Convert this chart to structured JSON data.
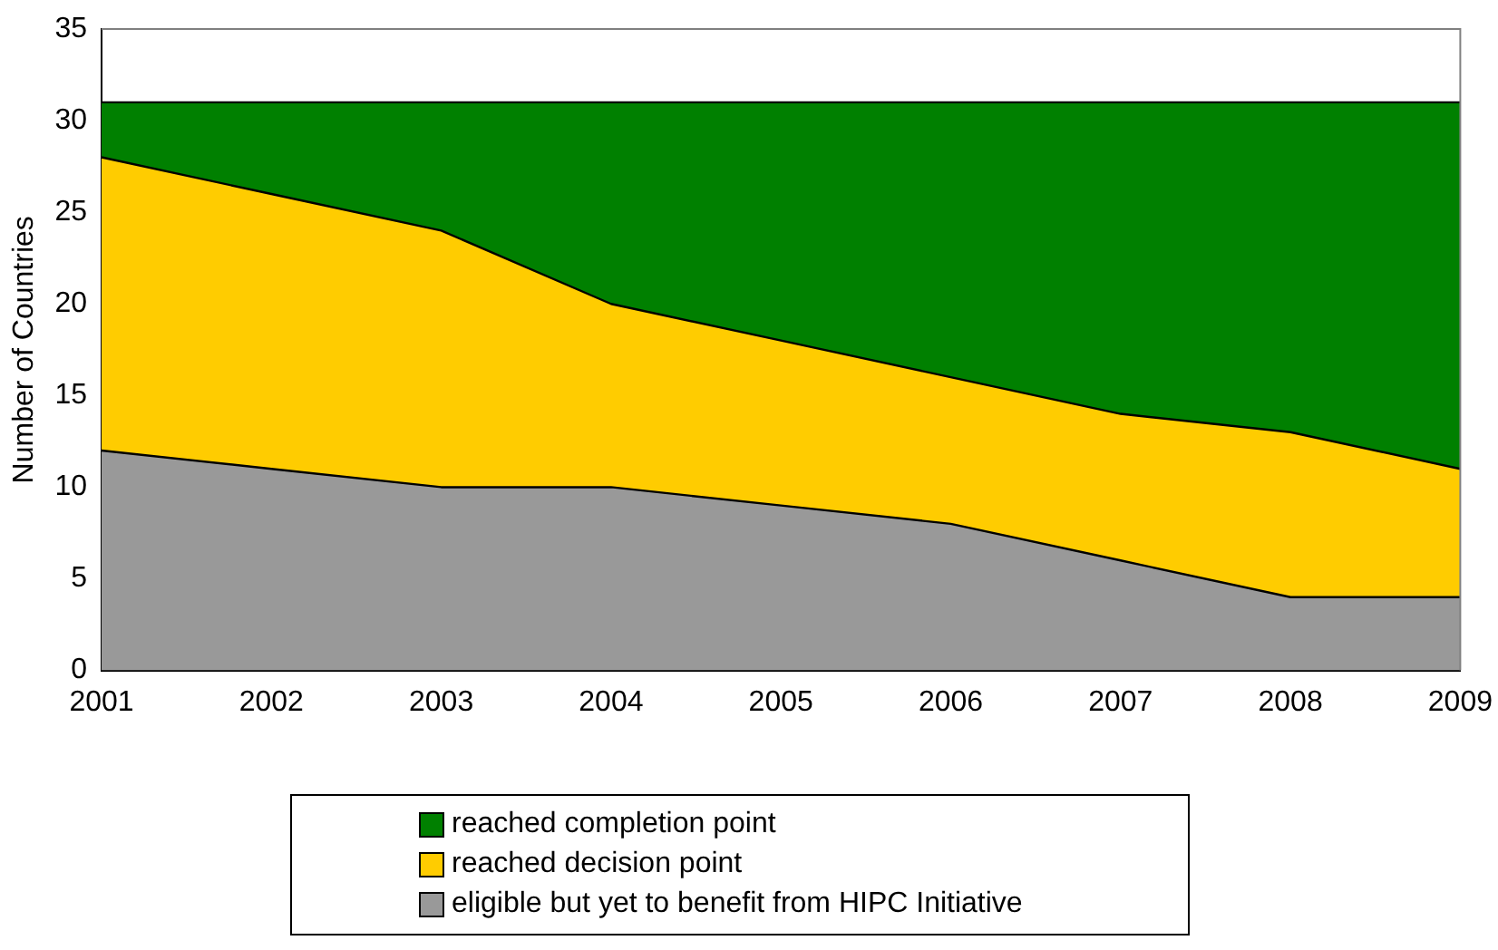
{
  "chart_data": {
    "type": "area",
    "stacked": true,
    "ylabel": "Number of Countries",
    "categories": [
      "2001",
      "2002",
      "2003",
      "2004",
      "2005",
      "2006",
      "2007",
      "2008",
      "2009"
    ],
    "series": [
      {
        "name": "eligible but yet to benefit from HIPC Initiative",
        "color": "#999999",
        "values": [
          12,
          11,
          10,
          10,
          9,
          8,
          6,
          4,
          4
        ]
      },
      {
        "name": "reached decision point",
        "color": "#ffcc00",
        "values": [
          16,
          15,
          14,
          10,
          9,
          8,
          8,
          9,
          7
        ]
      },
      {
        "name": "reached completion point",
        "color": "#008000",
        "values": [
          3,
          5,
          7,
          11,
          13,
          15,
          17,
          18,
          20
        ]
      }
    ],
    "ylim": [
      0,
      35
    ],
    "yticks": [
      0,
      5,
      10,
      15,
      20,
      25,
      30,
      35
    ],
    "grid": false,
    "legend": "bottom"
  }
}
